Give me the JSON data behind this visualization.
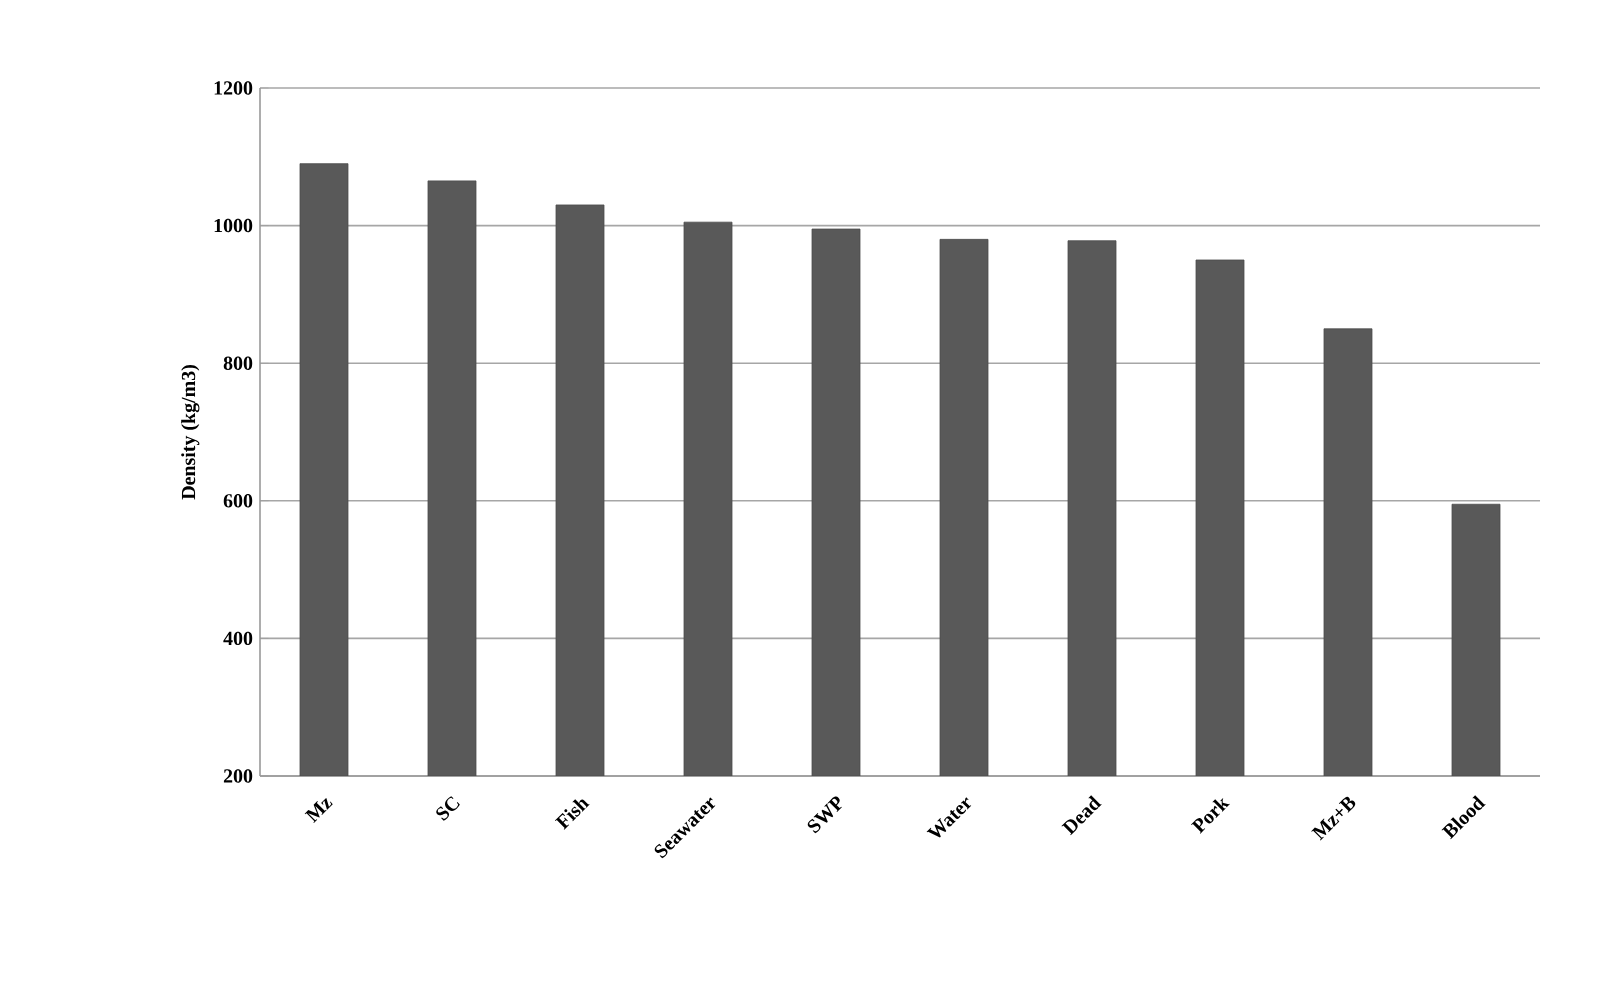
{
  "chart_data": {
    "type": "bar",
    "ylabel": "Density (kg/m3)",
    "categories": [
      "Mz",
      "SC",
      "Fish",
      "Seawater",
      "SWP",
      "Water",
      "Dead",
      "Pork",
      "Mz+B",
      "Blood"
    ],
    "values": [
      1090,
      1065,
      1030,
      1005,
      995,
      980,
      978,
      950,
      850,
      595
    ],
    "color": "#595959",
    "ylim": [
      200,
      1200
    ],
    "yticks": [
      200,
      400,
      600,
      800,
      1000,
      1200
    ],
    "grid": "y"
  }
}
